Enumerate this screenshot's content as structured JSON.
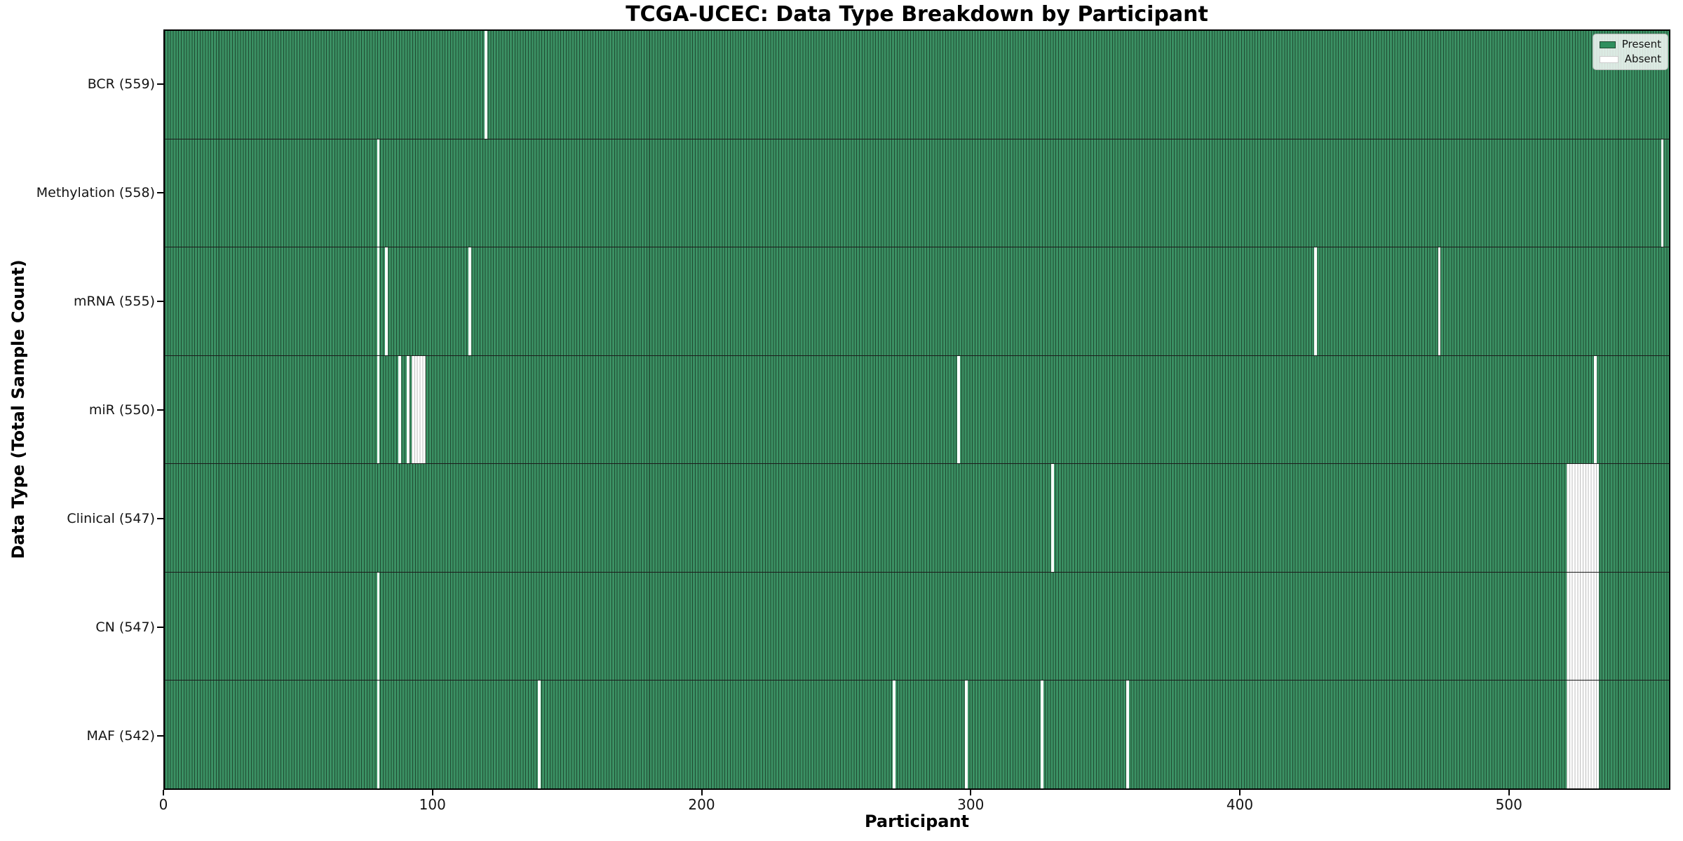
{
  "chart_data": {
    "type": "heatmap",
    "title": "TCGA-UCEC: Data Type Breakdown by Participant",
    "xlabel": "Participant",
    "ylabel": "Data Type (Total Sample Count)",
    "x_ticks": [
      0,
      100,
      200,
      300,
      400,
      500
    ],
    "x_range": [
      0,
      560
    ],
    "total_participants": 560,
    "grid": false,
    "colors": {
      "present_fill": "#3b9164",
      "present_edge": "#1f4a31",
      "absent_fill": "#ffffff",
      "absent_edge": "#bdbdbd",
      "row_separator": "#1b1b1b",
      "spine": "#000000"
    },
    "legend": {
      "position": "upper right",
      "entries": [
        {
          "label": "Present",
          "color": "#2f8f5e"
        },
        {
          "label": "Absent",
          "color": "#ffffff"
        }
      ]
    },
    "rows": [
      {
        "label": "BCR (559)",
        "data_type": "BCR",
        "present_count": 559,
        "absent_ranges": [
          [
            119,
            119
          ]
        ]
      },
      {
        "label": "Methylation (558)",
        "data_type": "Methylation",
        "present_count": 558,
        "absent_ranges": [
          [
            79,
            79
          ],
          [
            557,
            557
          ]
        ]
      },
      {
        "label": "mRNA (555)",
        "data_type": "mRNA",
        "present_count": 555,
        "absent_ranges": [
          [
            79,
            79
          ],
          [
            82,
            82
          ],
          [
            113,
            113
          ],
          [
            428,
            428
          ],
          [
            474,
            474
          ]
        ]
      },
      {
        "label": "miR (550)",
        "data_type": "miR",
        "present_count": 550,
        "absent_ranges": [
          [
            79,
            79
          ],
          [
            87,
            87
          ],
          [
            90,
            90
          ],
          [
            92,
            96
          ],
          [
            295,
            295
          ],
          [
            532,
            532
          ]
        ]
      },
      {
        "label": "Clinical (547)",
        "data_type": "Clinical",
        "present_count": 547,
        "absent_ranges": [
          [
            330,
            330
          ],
          [
            522,
            533
          ]
        ]
      },
      {
        "label": "CN (547)",
        "data_type": "CN",
        "present_count": 547,
        "absent_ranges": [
          [
            79,
            79
          ],
          [
            522,
            533
          ]
        ]
      },
      {
        "label": "MAF (542)",
        "data_type": "MAF",
        "present_count": 542,
        "absent_ranges": [
          [
            79,
            79
          ],
          [
            139,
            139
          ],
          [
            271,
            271
          ],
          [
            298,
            298
          ],
          [
            326,
            326
          ],
          [
            358,
            358
          ],
          [
            522,
            533
          ]
        ]
      }
    ]
  }
}
